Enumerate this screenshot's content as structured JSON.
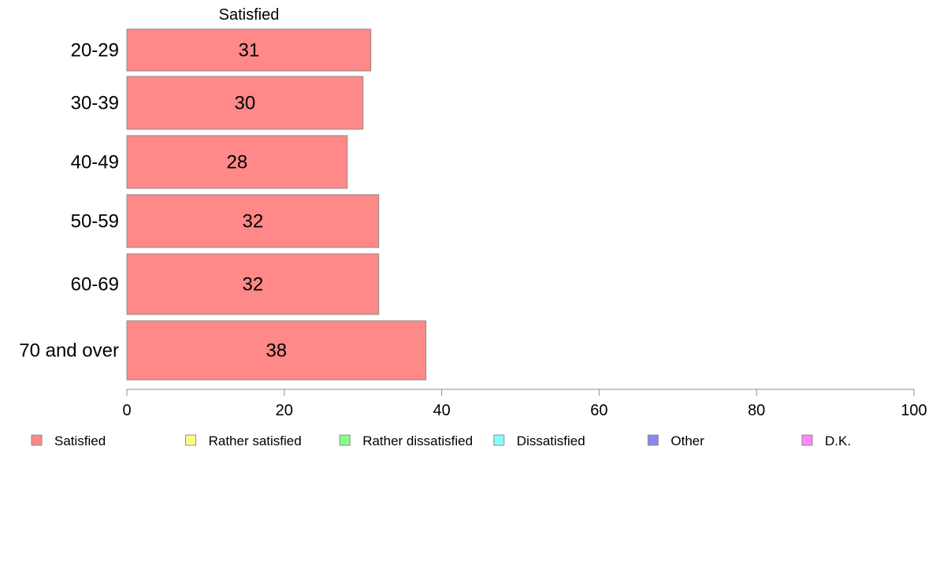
{
  "chart_data": {
    "type": "bar",
    "orientation": "horizontal",
    "panel_title": "Satisfied",
    "categories": [
      "20-29",
      "30-39",
      "40-49",
      "50-59",
      "60-69",
      "70 and over"
    ],
    "series": [
      {
        "name": "Satisfied",
        "values": [
          31,
          30,
          28,
          32,
          32,
          38
        ],
        "color": "#ff8888"
      }
    ],
    "data_labels": [
      "31",
      "30",
      "28",
      "32",
      "32",
      "38"
    ],
    "xlim": [
      0,
      100
    ],
    "xticks": [
      0,
      20,
      40,
      60,
      80,
      100
    ],
    "grid": false,
    "legend": {
      "placement": "bottom",
      "entries": [
        {
          "label": "Satisfied",
          "color": "#ff8888"
        },
        {
          "label": "Rather satisfied",
          "color": "#ffff88"
        },
        {
          "label": "Rather dissatisfied",
          "color": "#88ff88"
        },
        {
          "label": "Dissatisfied",
          "color": "#88ffff"
        },
        {
          "label": "Other",
          "color": "#8888ee"
        },
        {
          "label": "D.K.",
          "color": "#ff88ff"
        }
      ]
    }
  }
}
